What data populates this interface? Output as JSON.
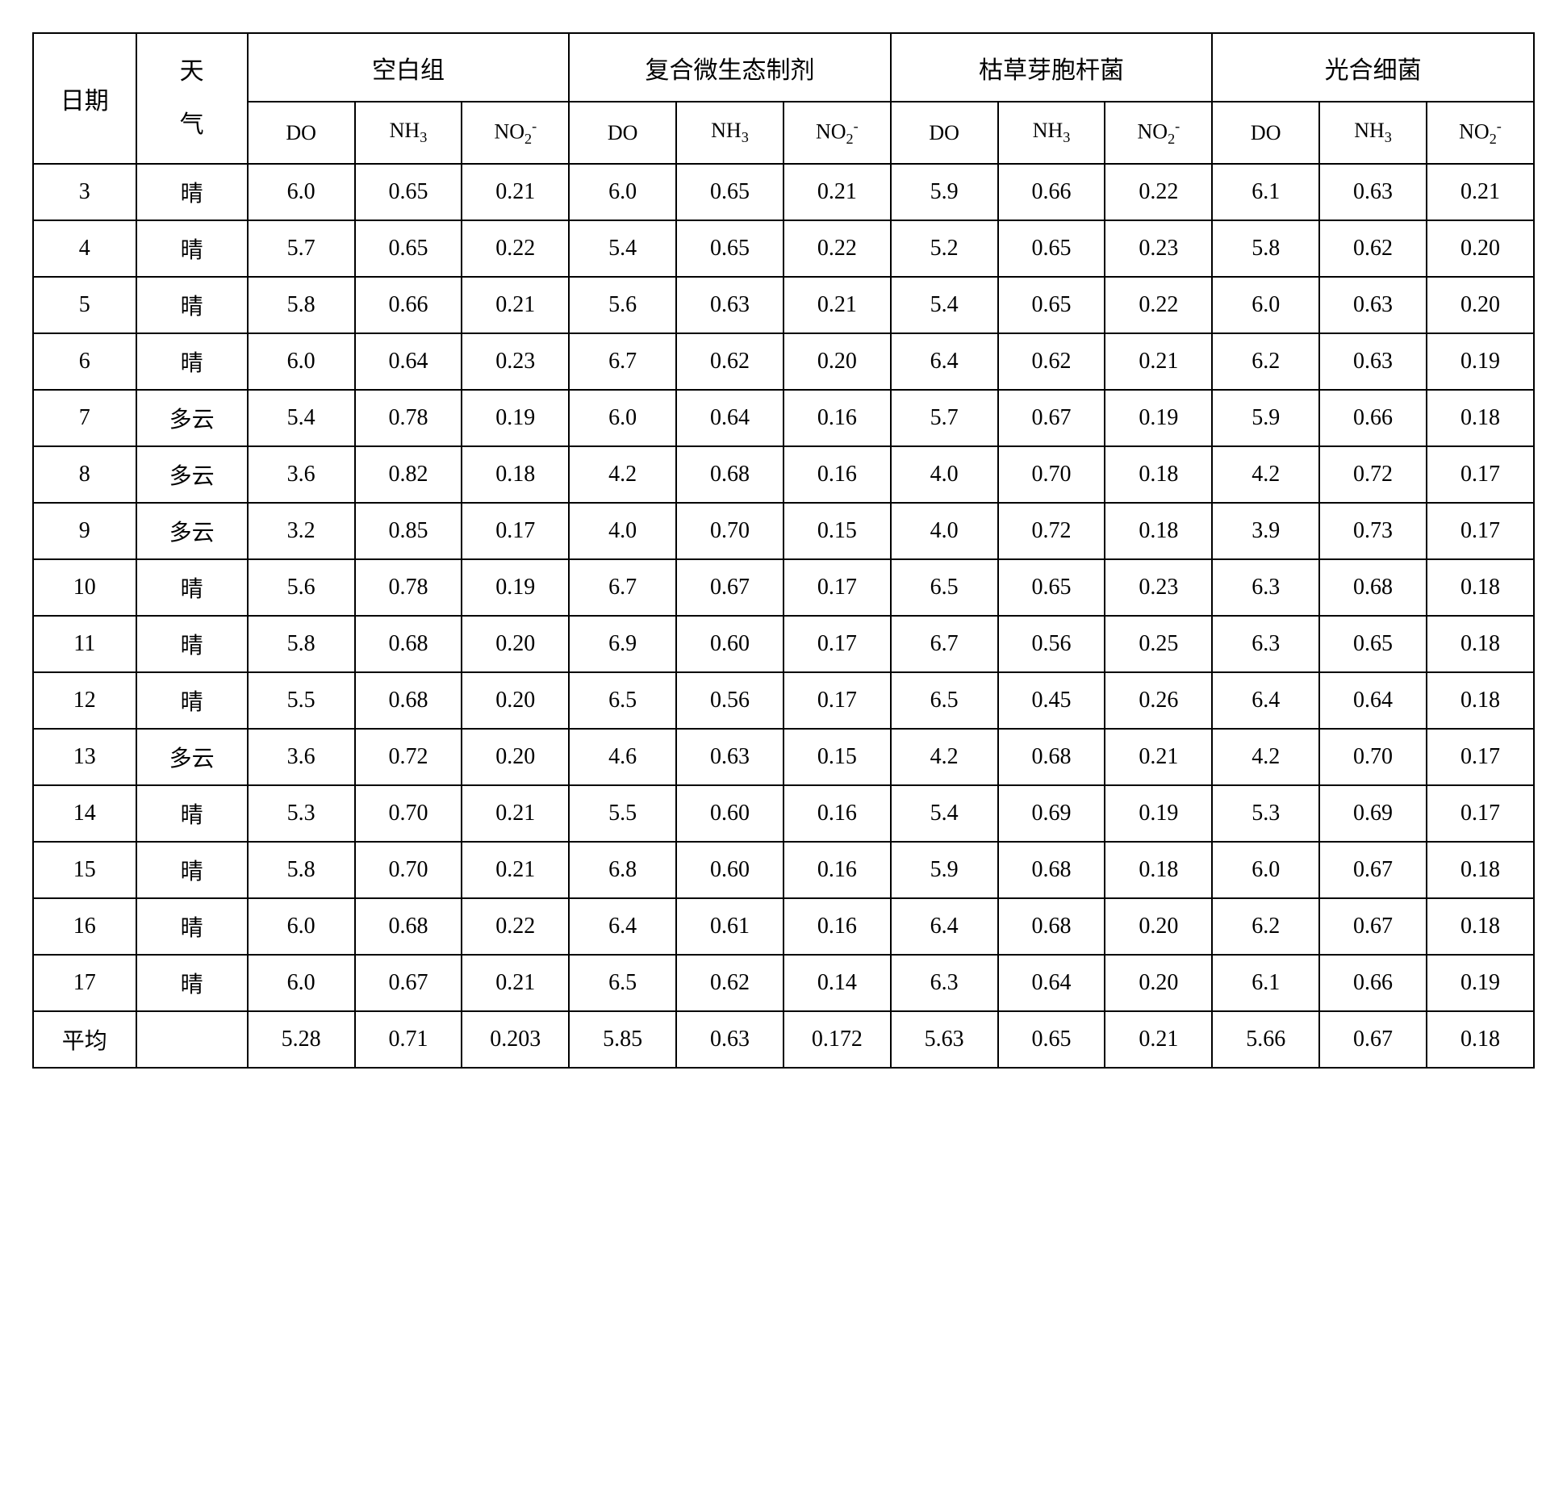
{
  "headers": {
    "date_label": "日期",
    "weather_label": "天气",
    "groups": [
      "空白组",
      "复合微生态制剂",
      "枯草芽胞杆菌",
      "光合细菌"
    ],
    "sub_do": "DO",
    "sub_nh3_prefix": "NH",
    "sub_nh3_sub": "3",
    "sub_no2_prefix": "NO",
    "sub_no2_sub": "2",
    "sub_no2_sup": "-"
  },
  "rows": [
    {
      "date": "3",
      "weather": "晴",
      "v": [
        "6.0",
        "0.65",
        "0.21",
        "6.0",
        "0.65",
        "0.21",
        "5.9",
        "0.66",
        "0.22",
        "6.1",
        "0.63",
        "0.21"
      ]
    },
    {
      "date": "4",
      "weather": "晴",
      "v": [
        "5.7",
        "0.65",
        "0.22",
        "5.4",
        "0.65",
        "0.22",
        "5.2",
        "0.65",
        "0.23",
        "5.8",
        "0.62",
        "0.20"
      ]
    },
    {
      "date": "5",
      "weather": "晴",
      "v": [
        "5.8",
        "0.66",
        "0.21",
        "5.6",
        "0.63",
        "0.21",
        "5.4",
        "0.65",
        "0.22",
        "6.0",
        "0.63",
        "0.20"
      ]
    },
    {
      "date": "6",
      "weather": "晴",
      "v": [
        "6.0",
        "0.64",
        "0.23",
        "6.7",
        "0.62",
        "0.20",
        "6.4",
        "0.62",
        "0.21",
        "6.2",
        "0.63",
        "0.19"
      ]
    },
    {
      "date": "7",
      "weather": "多云",
      "v": [
        "5.4",
        "0.78",
        "0.19",
        "6.0",
        "0.64",
        "0.16",
        "5.7",
        "0.67",
        "0.19",
        "5.9",
        "0.66",
        "0.18"
      ]
    },
    {
      "date": "8",
      "weather": "多云",
      "v": [
        "3.6",
        "0.82",
        "0.18",
        "4.2",
        "0.68",
        "0.16",
        "4.0",
        "0.70",
        "0.18",
        "4.2",
        "0.72",
        "0.17"
      ]
    },
    {
      "date": "9",
      "weather": "多云",
      "v": [
        "3.2",
        "0.85",
        "0.17",
        "4.0",
        "0.70",
        "0.15",
        "4.0",
        "0.72",
        "0.18",
        "3.9",
        "0.73",
        "0.17"
      ]
    },
    {
      "date": "10",
      "weather": "晴",
      "v": [
        "5.6",
        "0.78",
        "0.19",
        "6.7",
        "0.67",
        "0.17",
        "6.5",
        "0.65",
        "0.23",
        "6.3",
        "0.68",
        "0.18"
      ]
    },
    {
      "date": "11",
      "weather": "晴",
      "v": [
        "5.8",
        "0.68",
        "0.20",
        "6.9",
        "0.60",
        "0.17",
        "6.7",
        "0.56",
        "0.25",
        "6.3",
        "0.65",
        "0.18"
      ]
    },
    {
      "date": "12",
      "weather": "晴",
      "v": [
        "5.5",
        "0.68",
        "0.20",
        "6.5",
        "0.56",
        "0.17",
        "6.5",
        "0.45",
        "0.26",
        "6.4",
        "0.64",
        "0.18"
      ]
    },
    {
      "date": "13",
      "weather": "多云",
      "v": [
        "3.6",
        "0.72",
        "0.20",
        "4.6",
        "0.63",
        "0.15",
        "4.2",
        "0.68",
        "0.21",
        "4.2",
        "0.70",
        "0.17"
      ]
    },
    {
      "date": "14",
      "weather": "晴",
      "v": [
        "5.3",
        "0.70",
        "0.21",
        "5.5",
        "0.60",
        "0.16",
        "5.4",
        "0.69",
        "0.19",
        "5.3",
        "0.69",
        "0.17"
      ]
    },
    {
      "date": "15",
      "weather": "晴",
      "v": [
        "5.8",
        "0.70",
        "0.21",
        "6.8",
        "0.60",
        "0.16",
        "5.9",
        "0.68",
        "0.18",
        "6.0",
        "0.67",
        "0.18"
      ]
    },
    {
      "date": "16",
      "weather": "晴",
      "v": [
        "6.0",
        "0.68",
        "0.22",
        "6.4",
        "0.61",
        "0.16",
        "6.4",
        "0.68",
        "0.20",
        "6.2",
        "0.67",
        "0.18"
      ]
    },
    {
      "date": "17",
      "weather": "晴",
      "v": [
        "6.0",
        "0.67",
        "0.21",
        "6.5",
        "0.62",
        "0.14",
        "6.3",
        "0.64",
        "0.20",
        "6.1",
        "0.66",
        "0.19"
      ]
    }
  ],
  "average": {
    "label": "平均",
    "weather": "",
    "v": [
      "5.28",
      "0.71",
      "0.203",
      "5.85",
      "0.63",
      "0.172",
      "5.63",
      "0.65",
      "0.21",
      "5.66",
      "0.67",
      "0.18"
    ]
  },
  "style": {
    "type": "table",
    "num_groups": 4,
    "sub_per_group": 3,
    "border_color": "#000000",
    "background_color": "#ffffff",
    "text_color": "#000000",
    "header_fontsize_pt": 22,
    "cell_fontsize_pt": 20,
    "font_family_cjk": "SimSun",
    "font_family_latin": "Times New Roman"
  }
}
